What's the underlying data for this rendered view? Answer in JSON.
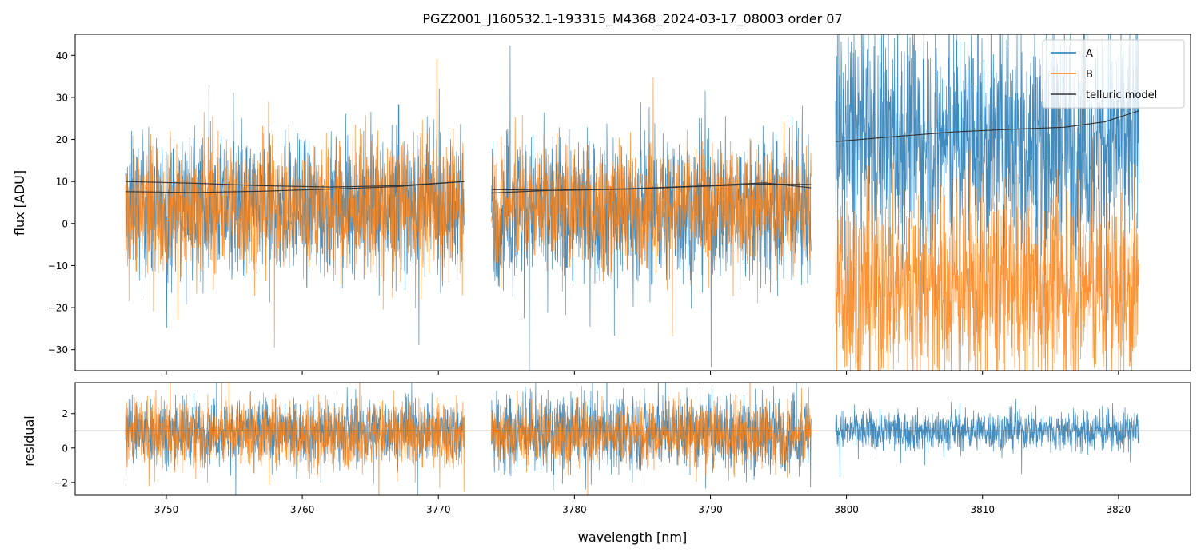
{
  "chart_data": [
    {
      "type": "line",
      "title": "PGZ2001_J160532.1-193315_M4368_2024-03-17_08003  order 07",
      "xlabel": "",
      "ylabel": "flux [ADU]",
      "xlim": [
        3743.3,
        3825.3
      ],
      "ylim": [
        -35,
        45
      ],
      "yticks": [
        -30,
        -20,
        -10,
        0,
        10,
        20,
        30,
        40
      ],
      "ytick_labels": [
        "−30",
        "−20",
        "−10",
        "0",
        "10",
        "20",
        "30",
        "40"
      ],
      "xticks": [
        3750,
        3760,
        3770,
        3780,
        3790,
        3800,
        3810,
        3820
      ],
      "segments": [
        {
          "x_range": [
            3747.0,
            3771.9
          ],
          "A": {
            "mean": 4.0,
            "noise": 8
          },
          "B": {
            "mean": 4.0,
            "noise": 8
          }
        },
        {
          "x_range": [
            3773.9,
            3797.4
          ],
          "A": {
            "mean": 3.5,
            "noise": 9
          },
          "B": {
            "mean": 4.5,
            "noise": 7
          }
        },
        {
          "x_range": [
            3799.2,
            3821.5
          ],
          "A": {
            "mean": 20.0,
            "noise": 14
          },
          "B": {
            "mean": -15.0,
            "noise": 12
          }
        }
      ],
      "series": [
        {
          "name": "A",
          "color": "#1f77b4"
        },
        {
          "name": "B",
          "color": "#ff7f0e"
        },
        {
          "name": "telluric model",
          "color": "#333333"
        }
      ],
      "telluric_model": [
        {
          "x": [
            3747.0,
            3752,
            3757,
            3762,
            3767,
            3771.9
          ],
          "y": [
            10.0,
            9.6,
            9.0,
            8.7,
            9.0,
            10.0
          ]
        },
        {
          "x": [
            3747.0,
            3752,
            3757,
            3762,
            3767,
            3771.9
          ],
          "y": [
            7.6,
            7.4,
            7.7,
            8.2,
            8.8,
            10.0
          ]
        },
        {
          "x": [
            3773.9,
            3779,
            3784,
            3789,
            3794,
            3797.4
          ],
          "y": [
            8.1,
            7.9,
            8.2,
            8.8,
            9.4,
            9.3
          ]
        },
        {
          "x": [
            3773.9,
            3779,
            3784,
            3789,
            3794,
            3797.4
          ],
          "y": [
            7.3,
            8.0,
            8.3,
            8.9,
            9.7,
            8.5
          ]
        },
        {
          "x": [
            3799.2,
            3804,
            3808,
            3812,
            3816,
            3819,
            3821.5
          ],
          "y": [
            19.5,
            20.8,
            21.8,
            22.4,
            22.9,
            24.2,
            26.8
          ]
        }
      ],
      "legend": {
        "location": "upper right",
        "entries": [
          "A",
          "B",
          "telluric model"
        ]
      }
    },
    {
      "type": "line",
      "title": "",
      "xlabel": "wavelength [nm]",
      "ylabel": "residual",
      "xlim": [
        3743.3,
        3825.3
      ],
      "ylim": [
        -2.75,
        3.8
      ],
      "yticks": [
        -2,
        0,
        2
      ],
      "ytick_labels": [
        "−2",
        "0",
        "2"
      ],
      "xticks": [
        3750,
        3760,
        3770,
        3780,
        3790,
        3800,
        3810,
        3820
      ],
      "xtick_labels": [
        "3750",
        "3760",
        "3770",
        "3780",
        "3790",
        "3800",
        "3810",
        "3820"
      ],
      "reference_line_y": 1.0,
      "segments": [
        {
          "x_range": [
            3747.0,
            3771.9
          ],
          "A": {
            "mean": 1.0,
            "noise": 0.9
          },
          "B": {
            "mean": 0.8,
            "noise": 1.0
          }
        },
        {
          "x_range": [
            3773.9,
            3797.4
          ],
          "A": {
            "mean": 0.9,
            "noise": 1.1
          },
          "B": {
            "mean": 0.8,
            "noise": 0.9
          }
        },
        {
          "x_range": [
            3799.2,
            3821.5
          ],
          "A": {
            "mean": 1.0,
            "noise": 0.6
          },
          "B": null
        }
      ],
      "series": [
        {
          "name": "A",
          "color": "#1f77b4"
        },
        {
          "name": "B",
          "color": "#ff7f0e"
        }
      ]
    }
  ]
}
